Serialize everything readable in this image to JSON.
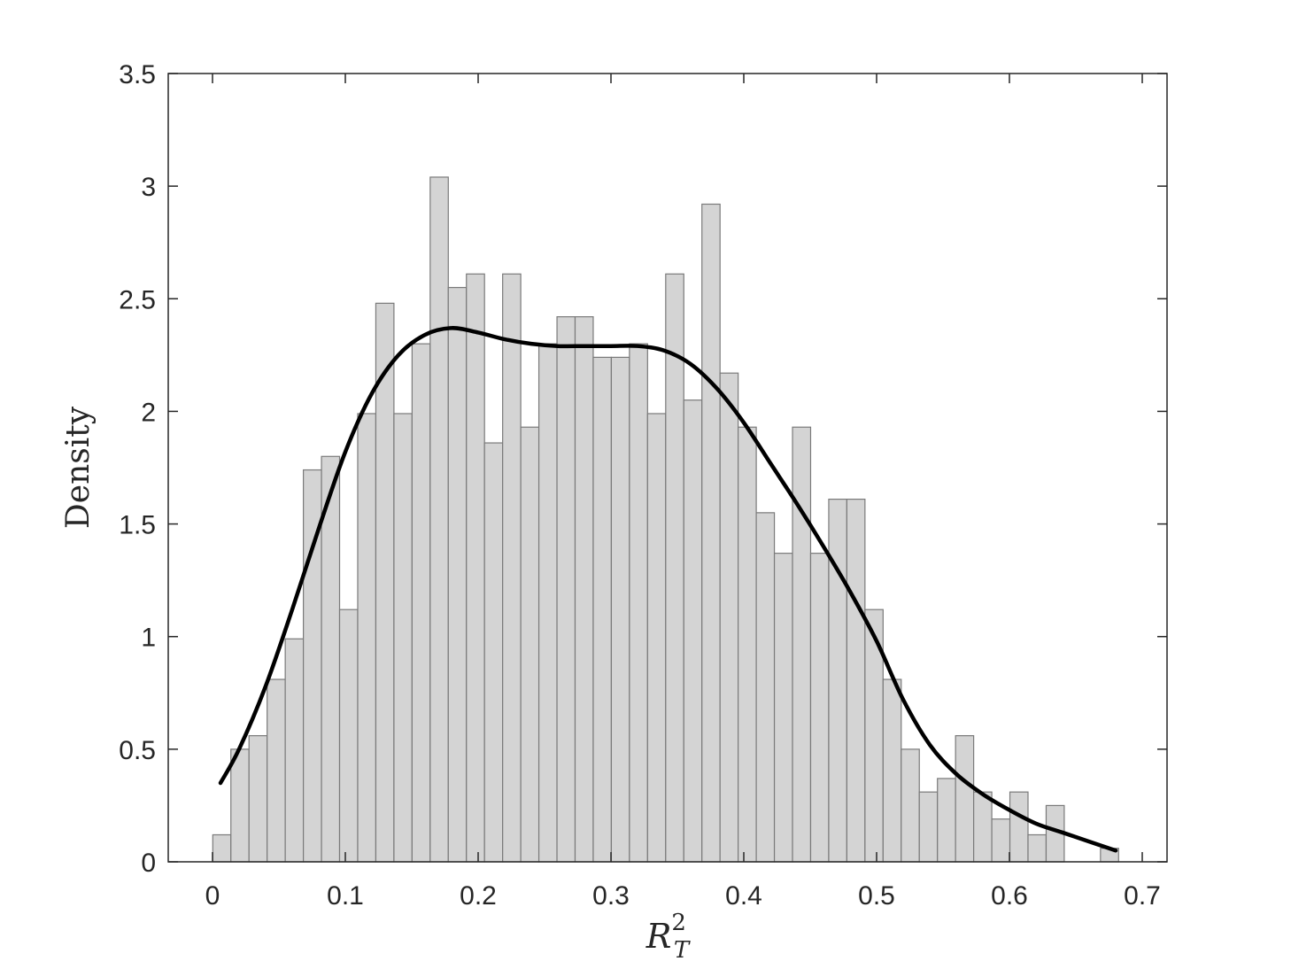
{
  "chart_data": {
    "type": "bar",
    "subtype": "histogram-with-density",
    "xlabel_base": "R",
    "xlabel_sub": "T",
    "xlabel_sup": "2",
    "ylabel": "Density",
    "xlim": [
      0,
      0.7
    ],
    "ylim": [
      0,
      3.5
    ],
    "xticks": [
      "0",
      "0.1",
      "0.2",
      "0.3",
      "0.4",
      "0.5",
      "0.6",
      "0.7"
    ],
    "yticks": [
      "0",
      "0.5",
      "1",
      "1.5",
      "2",
      "2.5",
      "3",
      "3.5"
    ],
    "bins": {
      "start": 0.0002,
      "width": 0.01364,
      "values": [
        0.12,
        0.5,
        0.56,
        0.81,
        0.99,
        1.74,
        1.8,
        1.12,
        1.99,
        2.48,
        1.99,
        2.3,
        3.04,
        2.55,
        2.61,
        1.86,
        2.61,
        1.93,
        2.3,
        2.42,
        2.42,
        2.24,
        2.24,
        2.3,
        1.99,
        2.61,
        2.05,
        2.92,
        2.17,
        1.93,
        1.55,
        1.37,
        1.93,
        1.37,
        1.61,
        1.61,
        1.12,
        0.81,
        0.5,
        0.31,
        0.37,
        0.56,
        0.31,
        0.19,
        0.31,
        0.12,
        0.25,
        0,
        0,
        0.06
      ]
    },
    "density_curve": {
      "x": [
        0.006,
        0.02,
        0.04,
        0.06,
        0.08,
        0.1,
        0.12,
        0.14,
        0.16,
        0.18,
        0.2,
        0.22,
        0.24,
        0.26,
        0.28,
        0.3,
        0.32,
        0.34,
        0.36,
        0.38,
        0.4,
        0.42,
        0.44,
        0.46,
        0.48,
        0.5,
        0.52,
        0.54,
        0.56,
        0.58,
        0.6,
        0.62,
        0.64,
        0.66,
        0.68
      ],
      "y": [
        0.35,
        0.5,
        0.78,
        1.12,
        1.48,
        1.82,
        2.08,
        2.25,
        2.34,
        2.37,
        2.35,
        2.32,
        2.3,
        2.29,
        2.29,
        2.29,
        2.29,
        2.27,
        2.21,
        2.1,
        1.95,
        1.77,
        1.59,
        1.4,
        1.2,
        0.98,
        0.72,
        0.52,
        0.39,
        0.3,
        0.23,
        0.17,
        0.13,
        0.09,
        0.05
      ]
    },
    "colors": {
      "bar_fill": "#d4d4d4",
      "bar_edge": "#7a7a7a",
      "curve": "#000000",
      "axes": "#262626"
    },
    "grid": false,
    "legend": "none"
  }
}
